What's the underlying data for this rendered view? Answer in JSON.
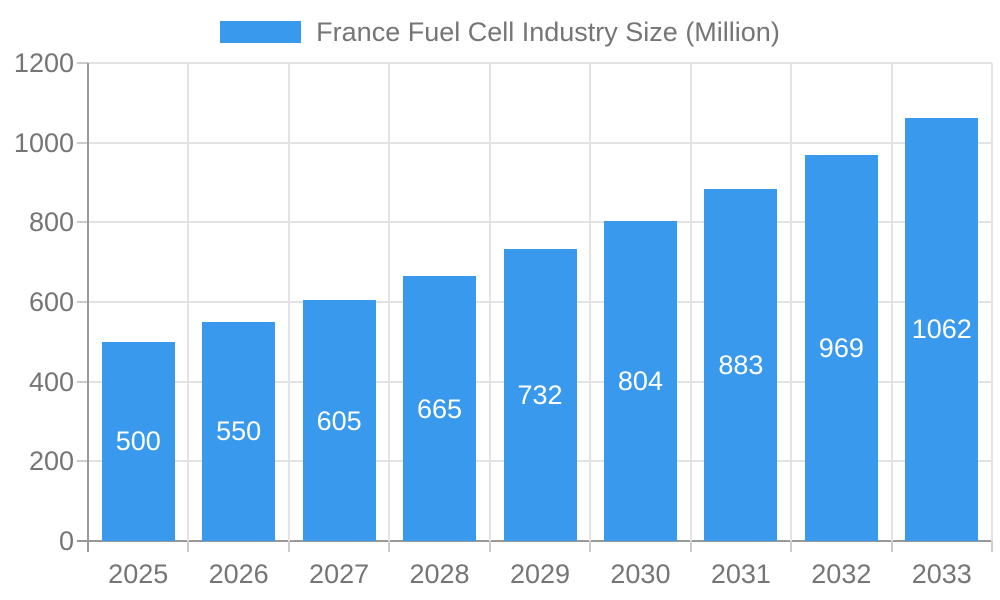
{
  "chart_data": {
    "type": "bar",
    "title": "France Fuel Cell Industry Size (Million)",
    "categories": [
      "2025",
      "2026",
      "2027",
      "2028",
      "2029",
      "2030",
      "2031",
      "2032",
      "2033"
    ],
    "values": [
      500,
      550,
      605,
      665,
      732,
      804,
      883,
      969,
      1062
    ],
    "xlabel": "",
    "ylabel": "",
    "ylim": [
      0,
      1200
    ],
    "ytick_step": 200,
    "ytick_labels": [
      "0",
      "200",
      "400",
      "600",
      "800",
      "1000",
      "1200"
    ],
    "grid": true,
    "legend_position": "top",
    "colors": {
      "bar": "#3999ec",
      "value_label": "#ffffff",
      "tick_text": "#757575",
      "gridline": "#e3e3e3",
      "axis_line": "#999999",
      "tick_mark": "#cccccc",
      "background": "#ffffff"
    }
  }
}
